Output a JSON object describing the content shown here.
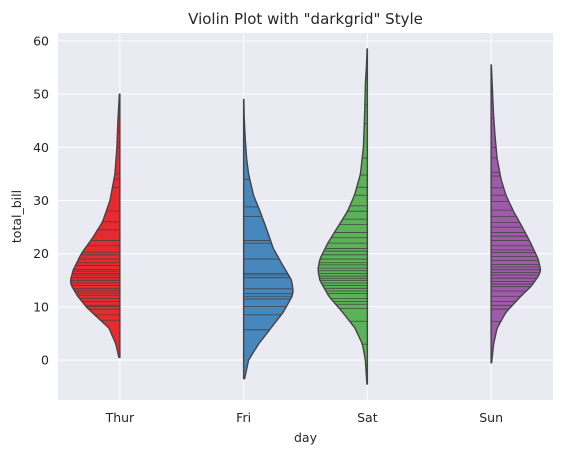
{
  "chart_data": {
    "type": "violin",
    "style": "darkgrid",
    "title": "Violin Plot with \"darkgrid\" Style",
    "xlabel": "day",
    "ylabel": "total_bill",
    "categories": [
      "Thur",
      "Fri",
      "Sat",
      "Sun"
    ],
    "ylim": [
      -7.5,
      61.5
    ],
    "yticks": [
      0,
      10,
      20,
      30,
      40,
      50,
      60
    ],
    "split": true,
    "inner": "stick",
    "grid": true,
    "background_color": "#eaeaf2",
    "grid_color": "#ffffff",
    "outline_color": "#444444",
    "violins": [
      {
        "category": "Thur",
        "side": "left",
        "color": "#e41a1c",
        "range": [
          0.5,
          50
        ],
        "profile": [
          [
            0.5,
            0.02
          ],
          [
            3,
            0.08
          ],
          [
            6,
            0.22
          ],
          [
            8,
            0.45
          ],
          [
            10,
            0.68
          ],
          [
            12,
            0.85
          ],
          [
            14,
            0.98
          ],
          [
            15,
            1.0
          ],
          [
            17,
            0.94
          ],
          [
            20,
            0.78
          ],
          [
            23,
            0.55
          ],
          [
            26,
            0.35
          ],
          [
            30,
            0.2
          ],
          [
            35,
            0.1
          ],
          [
            40,
            0.06
          ],
          [
            45,
            0.04
          ],
          [
            50,
            0.01
          ]
        ],
        "sticks": [
          7.5,
          8.5,
          9.6,
          10.1,
          10.3,
          11.0,
          11.6,
          12.2,
          12.6,
          13.0,
          13.4,
          14.0,
          14.5,
          15.0,
          15.5,
          16.0,
          16.3,
          16.7,
          17.0,
          17.8,
          18.3,
          19.0,
          19.8,
          20.3,
          21.5,
          22.5,
          24.5,
          26.0,
          28.0,
          32.5,
          34.0,
          35.0,
          40.0,
          41.0,
          43.0
        ]
      },
      {
        "category": "Fri",
        "side": "right",
        "color": "#377eb8",
        "range": [
          -3.5,
          49
        ],
        "profile": [
          [
            -3.5,
            0.02
          ],
          [
            0,
            0.1
          ],
          [
            3,
            0.3
          ],
          [
            6,
            0.55
          ],
          [
            9,
            0.8
          ],
          [
            12,
            0.98
          ],
          [
            13,
            1.0
          ],
          [
            15,
            0.97
          ],
          [
            18,
            0.78
          ],
          [
            21,
            0.6
          ],
          [
            25,
            0.45
          ],
          [
            28,
            0.33
          ],
          [
            31,
            0.2
          ],
          [
            35,
            0.1
          ],
          [
            38,
            0.06
          ],
          [
            42,
            0.03
          ],
          [
            46,
            0.01
          ],
          [
            49,
            0.005
          ]
        ],
        "sticks": [
          5.7,
          8.5,
          10.1,
          11.5,
          12.0,
          12.5,
          13.4,
          15.5,
          16.0,
          16.3,
          19.0,
          22.0,
          22.5,
          27.0,
          28.8,
          34.0,
          40.2
        ]
      },
      {
        "category": "Sat",
        "side": "left",
        "color": "#4daf4a",
        "range": [
          -4.5,
          58.5
        ],
        "profile": [
          [
            -4.5,
            0.01
          ],
          [
            0,
            0.04
          ],
          [
            3,
            0.1
          ],
          [
            6,
            0.25
          ],
          [
            9,
            0.5
          ],
          [
            12,
            0.78
          ],
          [
            15,
            0.96
          ],
          [
            17,
            1.0
          ],
          [
            19,
            0.96
          ],
          [
            22,
            0.8
          ],
          [
            25,
            0.6
          ],
          [
            28,
            0.4
          ],
          [
            31,
            0.26
          ],
          [
            35,
            0.14
          ],
          [
            40,
            0.08
          ],
          [
            45,
            0.06
          ],
          [
            48,
            0.05
          ],
          [
            52,
            0.04
          ],
          [
            55,
            0.02
          ],
          [
            58.5,
            0.005
          ]
        ],
        "sticks": [
          3.0,
          7.3,
          9.7,
          10.5,
          11.0,
          11.6,
          12.5,
          13.0,
          13.5,
          14.0,
          14.5,
          15.0,
          15.4,
          15.8,
          16.3,
          16.8,
          17.3,
          17.9,
          18.3,
          19.0,
          19.8,
          20.5,
          21.0,
          22.0,
          23.0,
          24.0,
          25.5,
          26.5,
          28.0,
          29.0,
          31.0,
          32.5,
          34.8,
          38.0,
          44.5,
          48.0,
          50.8
        ]
      },
      {
        "category": "Sun",
        "side": "right",
        "color": "#984ea3",
        "range": [
          -0.5,
          55.5
        ],
        "profile": [
          [
            -0.5,
            0.01
          ],
          [
            3,
            0.05
          ],
          [
            6,
            0.12
          ],
          [
            9,
            0.3
          ],
          [
            12,
            0.6
          ],
          [
            14,
            0.82
          ],
          [
            16,
            0.97
          ],
          [
            17,
            1.0
          ],
          [
            19,
            0.95
          ],
          [
            22,
            0.8
          ],
          [
            25,
            0.63
          ],
          [
            28,
            0.45
          ],
          [
            31,
            0.3
          ],
          [
            34,
            0.2
          ],
          [
            38,
            0.12
          ],
          [
            42,
            0.08
          ],
          [
            46,
            0.05
          ],
          [
            50,
            0.03
          ],
          [
            55.5,
            0.005
          ]
        ],
        "sticks": [
          7.25,
          9.6,
          10.3,
          11.0,
          12.0,
          13.0,
          13.8,
          14.3,
          14.8,
          15.4,
          16.0,
          16.5,
          17.0,
          17.5,
          18.0,
          18.7,
          19.5,
          20.2,
          20.7,
          21.5,
          22.5,
          23.3,
          24.0,
          25.0,
          25.9,
          27.0,
          28.2,
          29.8,
          31.0,
          32.4,
          34.6,
          35.3,
          38.0,
          40.0,
          45.4,
          48.2
        ]
      }
    ]
  }
}
